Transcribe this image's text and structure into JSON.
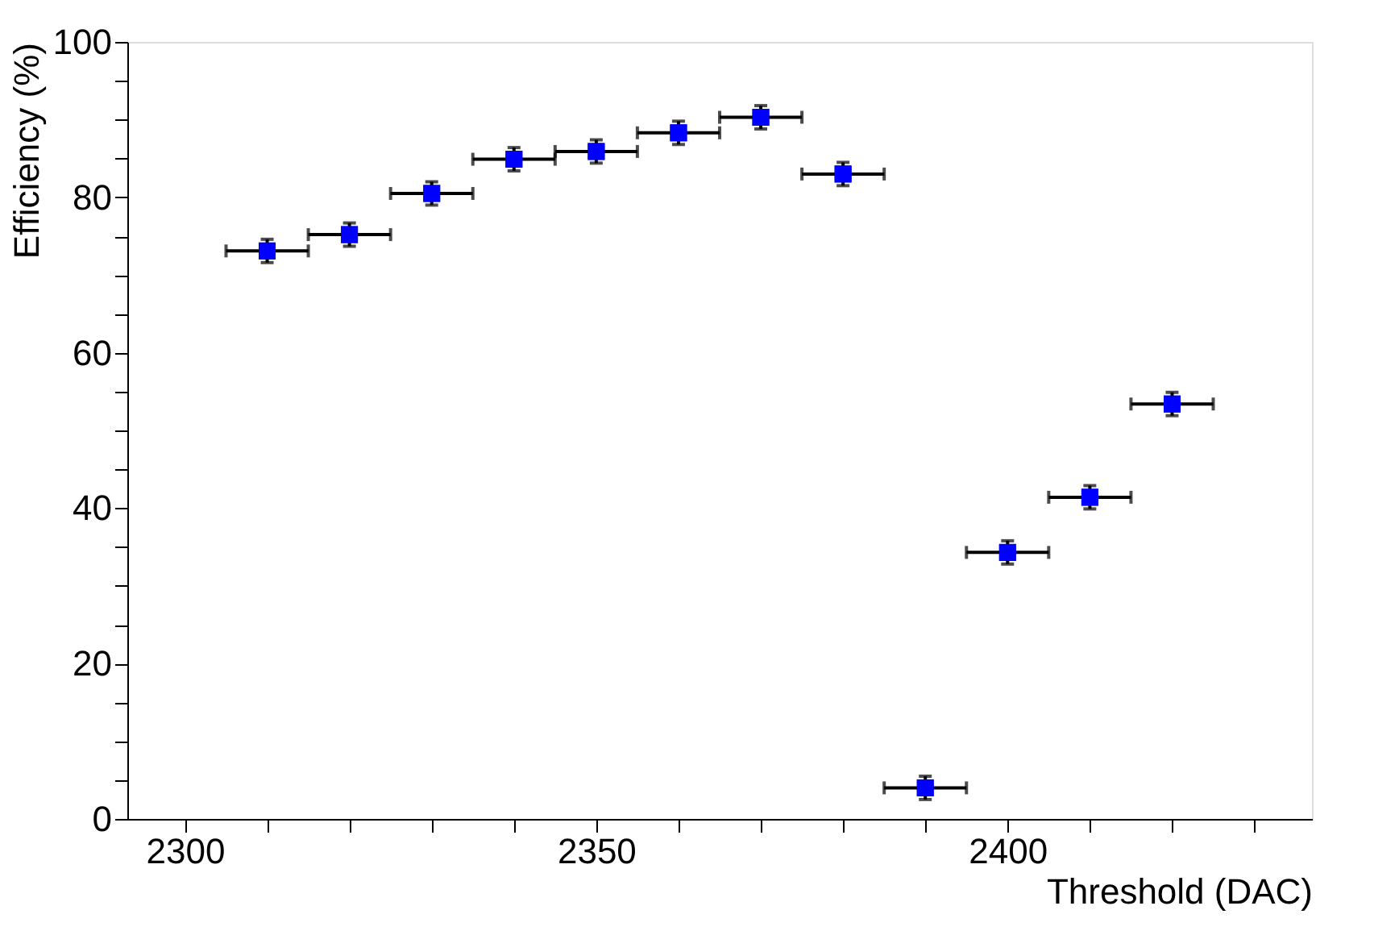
{
  "chart_data": {
    "type": "scatter",
    "xlabel": "Threshold (DAC)",
    "ylabel": "Efficiency (%)",
    "x": [
      2310,
      2320,
      2330,
      2340,
      2350,
      2360,
      2370,
      2380,
      2390,
      2400,
      2410,
      2420
    ],
    "series": [
      {
        "color": "#0000ff",
        "values": [
          73.1,
          75.2,
          80.5,
          84.9,
          85.9,
          88.3,
          90.3,
          83.0,
          4.0,
          34.3,
          41.4,
          53.4
        ],
        "errors": [
          1.5,
          1.5,
          1.5,
          1.5,
          1.5,
          1.5,
          1.5,
          1.5,
          1.5,
          1.5,
          1.5,
          1.5
        ],
        "xerrors": [
          5,
          5,
          5,
          5,
          5,
          5,
          5,
          5,
          5,
          5,
          5,
          5
        ]
      }
    ],
    "marker": "square",
    "xlim": [
      2293,
      2437
    ],
    "ylim": [
      0,
      100
    ],
    "xticks": [
      {
        "value": 2300,
        "label": "2300"
      },
      {
        "value": 2310,
        "label": null
      },
      {
        "value": 2320,
        "label": null
      },
      {
        "value": 2330,
        "label": null
      },
      {
        "value": 2340,
        "label": null
      },
      {
        "value": 2350,
        "label": "2350"
      },
      {
        "value": 2360,
        "label": null
      },
      {
        "value": 2370,
        "label": null
      },
      {
        "value": 2380,
        "label": null
      },
      {
        "value": 2390,
        "label": null
      },
      {
        "value": 2400,
        "label": "2400"
      },
      {
        "value": 2410,
        "label": null
      },
      {
        "value": 2420,
        "label": null
      },
      {
        "value": 2430,
        "label": null
      }
    ],
    "yticks": [
      0,
      {
        "value": 5,
        "label": null
      },
      {
        "value": 10,
        "label": null
      },
      {
        "value": 15,
        "label": null
      },
      20,
      {
        "value": 25,
        "label": null
      },
      {
        "value": 30,
        "label": null
      },
      {
        "value": 35,
        "label": null
      },
      40,
      {
        "value": 45,
        "label": null
      },
      {
        "value": 50,
        "label": null
      },
      {
        "value": 55,
        "label": null
      },
      60,
      {
        "value": 65,
        "label": null
      },
      {
        "value": 70,
        "label": null
      },
      {
        "value": 75,
        "label": null
      },
      80,
      {
        "value": 85,
        "label": null
      },
      {
        "value": 90,
        "label": null
      },
      {
        "value": 95,
        "label": null
      },
      100
    ],
    "grid": false,
    "legend": false
  }
}
